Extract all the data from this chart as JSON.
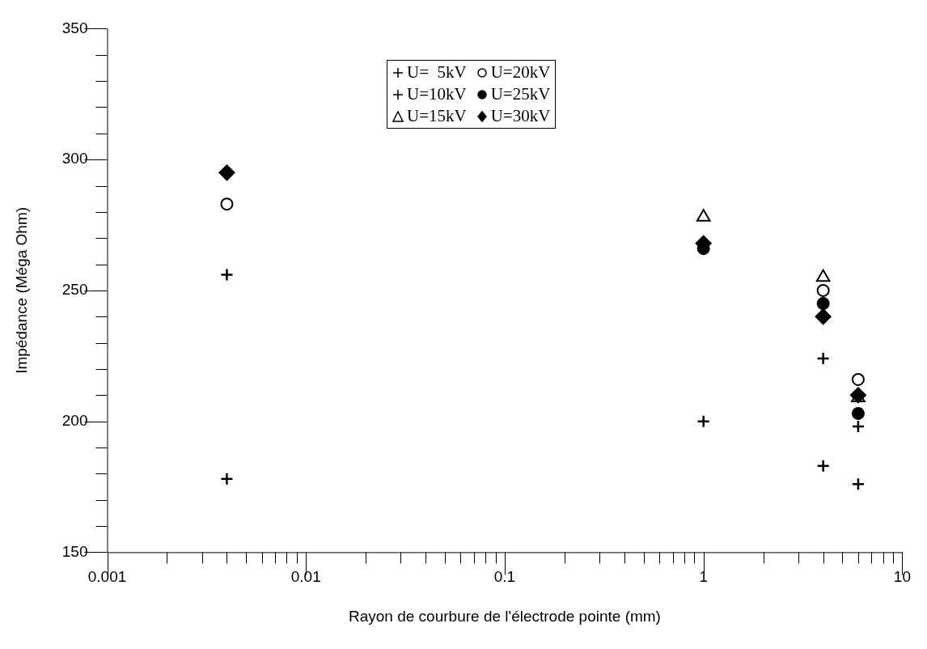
{
  "chart_data": {
    "type": "scatter",
    "xlabel": "Rayon de courbure de l'électrode pointe (mm)",
    "ylabel": "Impédance (Méga Ohm)",
    "log": "x",
    "grid": false,
    "legend": "top",
    "x": [
      0.004,
      1,
      4,
      6
    ],
    "xlim": [
      0.001,
      10
    ],
    "xticks": [
      0.001,
      {
        "value": 0.002,
        "label": null
      },
      {
        "value": 0.003,
        "label": null
      },
      {
        "value": 0.004,
        "label": null
      },
      {
        "value": 0.005,
        "label": null
      },
      {
        "value": 0.006,
        "label": null
      },
      {
        "value": 0.007,
        "label": null
      },
      {
        "value": 0.008,
        "label": null
      },
      {
        "value": 0.009,
        "label": null
      },
      0.01,
      {
        "value": 0.02,
        "label": null
      },
      {
        "value": 0.03,
        "label": null
      },
      {
        "value": 0.04,
        "label": null
      },
      {
        "value": 0.05,
        "label": null
      },
      {
        "value": 0.06,
        "label": null
      },
      {
        "value": 0.07,
        "label": null
      },
      {
        "value": 0.08,
        "label": null
      },
      {
        "value": 0.09,
        "label": null
      },
      0.1,
      {
        "value": 0.2,
        "label": null
      },
      {
        "value": 0.3,
        "label": null
      },
      {
        "value": 0.4,
        "label": null
      },
      {
        "value": 0.5,
        "label": null
      },
      {
        "value": 0.6,
        "label": null
      },
      {
        "value": 0.7,
        "label": null
      },
      {
        "value": 0.8,
        "label": null
      },
      {
        "value": 0.9,
        "label": null
      },
      1,
      {
        "value": 2,
        "label": null
      },
      {
        "value": 3,
        "label": null
      },
      {
        "value": 4,
        "label": null
      },
      {
        "value": 5,
        "label": null
      },
      {
        "value": 6,
        "label": null
      },
      {
        "value": 7,
        "label": null
      },
      {
        "value": 8,
        "label": null
      },
      {
        "value": 9,
        "label": null
      },
      10
    ],
    "ylim": [
      150,
      350
    ],
    "yticks": [
      150,
      {
        "value": 160,
        "label": null
      },
      {
        "value": 170,
        "label": null
      },
      {
        "value": 180,
        "label": null
      },
      {
        "value": 190,
        "label": null
      },
      200,
      {
        "value": 210,
        "label": null
      },
      {
        "value": 220,
        "label": null
      },
      {
        "value": 230,
        "label": null
      },
      {
        "value": 240,
        "label": null
      },
      250,
      {
        "value": 260,
        "label": null
      },
      {
        "value": 270,
        "label": null
      },
      {
        "value": 280,
        "label": null
      },
      {
        "value": 290,
        "label": null
      },
      300,
      {
        "value": 310,
        "label": null
      },
      {
        "value": 320,
        "label": null
      },
      {
        "value": 330,
        "label": null
      },
      {
        "value": 340,
        "label": null
      },
      350
    ],
    "series": [
      {
        "name": "U=  5kV",
        "color": "#000000",
        "marker": "cross",
        "values": [
          178,
          200,
          183,
          176
        ]
      },
      {
        "name": "U=20kV",
        "color": "#ffffff",
        "marker": "circle",
        "values": [
          283,
          null,
          250,
          216
        ]
      },
      {
        "name": "U=10kV",
        "color": "#000000",
        "marker": "cross",
        "values": [
          256,
          null,
          224,
          198
        ]
      },
      {
        "name": "U=25kV",
        "color": "#000000",
        "marker": "circle",
        "values": [
          null,
          266,
          245,
          203
        ]
      },
      {
        "name": "U=15kV",
        "color": "#ffffff",
        "marker": "triangle",
        "values": [
          null,
          278,
          255,
          209
        ]
      },
      {
        "name": "U=30kV",
        "color": "#000000",
        "marker": "diamond",
        "values": [
          295,
          268,
          240,
          210
        ]
      }
    ]
  }
}
